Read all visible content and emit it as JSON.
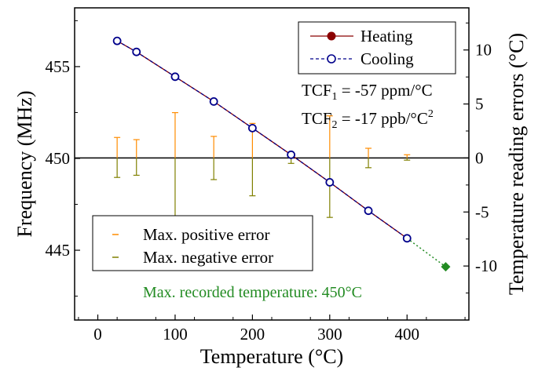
{
  "chart_data": {
    "type": "line",
    "xlabel": "Temperature (°C)",
    "ylabel_left": "Frequency (MHz)",
    "ylabel_right": "Temperature reading errors (°C)",
    "xlim": [
      -30,
      480
    ],
    "ylim_left": [
      441.2,
      458.2
    ],
    "ylim_right": [
      -15.0,
      13.9
    ],
    "x_ticks": [
      "0",
      "100",
      "200",
      "300",
      "400"
    ],
    "y_left_ticks": [
      "445",
      "450",
      "455"
    ],
    "y_right_ticks": [
      "-10",
      "-5",
      "0",
      "5",
      "10"
    ],
    "zero_line_right": 0,
    "series": [
      {
        "name": "Heating",
        "color": "#8b0000",
        "marker": "filled-circle",
        "x": [
          25,
          50,
          100,
          150,
          200,
          250,
          300,
          350,
          400
        ],
        "y": [
          456.4,
          455.8,
          454.45,
          453.1,
          451.65,
          450.2,
          448.7,
          447.15,
          445.65
        ]
      },
      {
        "name": "Cooling",
        "color": "#00008b",
        "marker": "open-circle",
        "x": [
          25,
          50,
          100,
          150,
          200,
          250,
          300,
          350,
          400
        ],
        "y": [
          456.4,
          455.8,
          454.45,
          453.1,
          451.65,
          450.2,
          448.7,
          447.15,
          445.65
        ]
      }
    ],
    "extrapolation": {
      "color": "#228b22",
      "x": [
        400,
        450
      ],
      "y": [
        445.65,
        444.1
      ]
    },
    "max_point": {
      "color": "#228b22",
      "marker": "diamond",
      "x": 450,
      "y": 444.1
    },
    "error_bars": {
      "positive_name": "Max. positive error",
      "negative_name": "Max. negative error",
      "positive_color": "#ff8c00",
      "negative_color": "#808000",
      "x": [
        25,
        50,
        100,
        150,
        200,
        250,
        300,
        350,
        400
      ],
      "positive": [
        1.9,
        1.7,
        4.2,
        2.0,
        3.2,
        0.4,
        3.9,
        0.9,
        0.3
      ],
      "negative": [
        -1.8,
        -1.6,
        -5.4,
        -2.0,
        -3.5,
        -0.5,
        -5.5,
        -0.9,
        -0.2
      ]
    },
    "annotations": {
      "tcf1_prefix": "TCF",
      "tcf1_sub": "1",
      "tcf1_value": " = -57 ppm/°C",
      "tcf2_prefix": "TCF",
      "tcf2_sub": "2",
      "tcf2_value": " = -17 ppb/°C",
      "tcf2_sup": "2",
      "note": "Max. recorded temperature: 450°C",
      "note_color": "#228b22"
    }
  }
}
